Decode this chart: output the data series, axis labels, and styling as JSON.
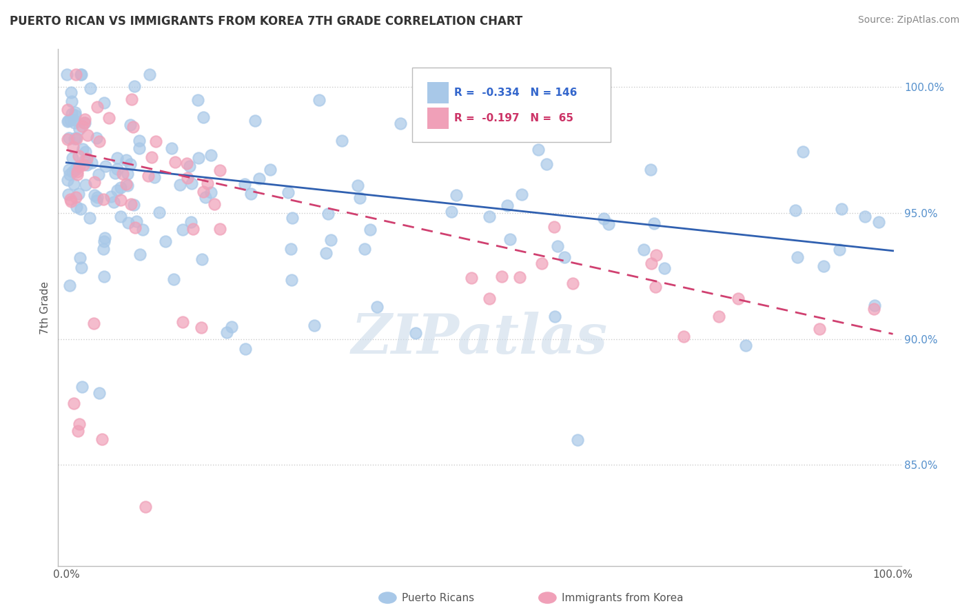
{
  "title": "PUERTO RICAN VS IMMIGRANTS FROM KOREA 7TH GRADE CORRELATION CHART",
  "source": "Source: ZipAtlas.com",
  "ylabel": "7th Grade",
  "blue_R": -0.334,
  "blue_N": 146,
  "pink_R": -0.197,
  "pink_N": 65,
  "blue_color": "#a8c8e8",
  "pink_color": "#f0a0b8",
  "blue_line_color": "#3060b0",
  "pink_line_color": "#d04070",
  "watermark": "ZIPatlas",
  "ylim_min": 81.0,
  "ylim_max": 101.5,
  "xlim_min": -1.0,
  "xlim_max": 101.0,
  "yticks": [
    85.0,
    90.0,
    95.0,
    100.0
  ],
  "ytick_labels": [
    "85.0%",
    "90.0%",
    "95.0%",
    "100.0%"
  ],
  "blue_line_start_y": 97.0,
  "blue_line_end_y": 93.5,
  "pink_line_start_y": 97.5,
  "pink_line_end_y": 90.2
}
